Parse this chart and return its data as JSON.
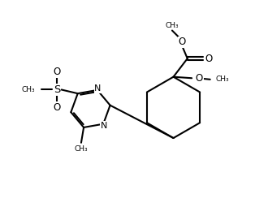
{
  "bg_color": "#ffffff",
  "line_color": "#000000",
  "lw": 1.5,
  "fs": 7.5,
  "xlim": [
    0,
    10
  ],
  "ylim": [
    0,
    8.6
  ],
  "figsize": [
    3.14,
    2.71
  ],
  "dpi": 100
}
